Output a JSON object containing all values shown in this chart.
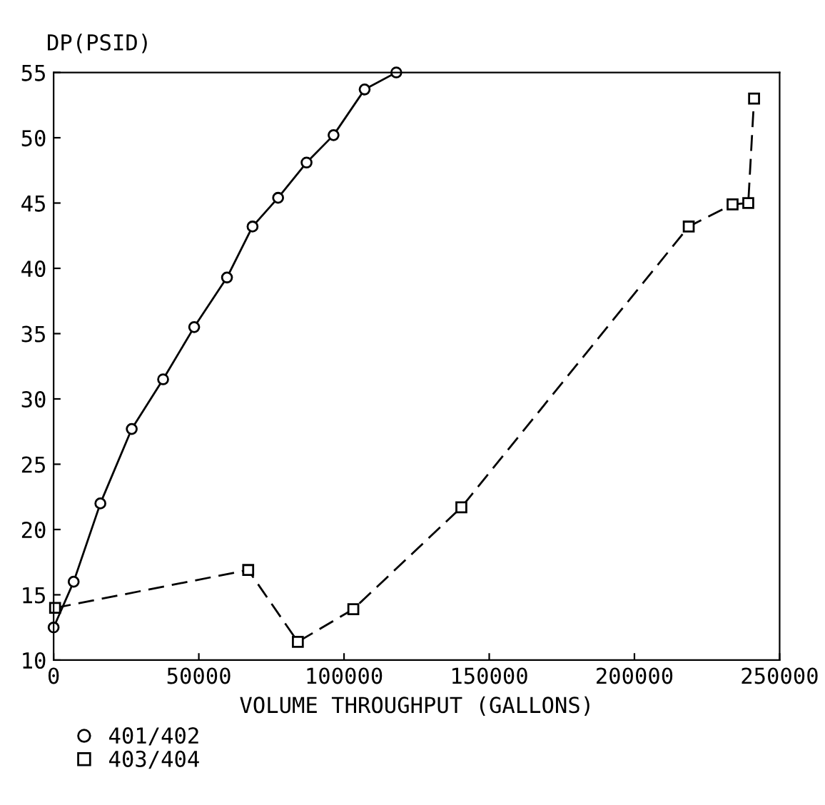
{
  "chart_data": {
    "type": "line",
    "xlabel": "VOLUME THROUGHPUT (GALLONS)",
    "ylabel": "DP(PSID)",
    "xlim": [
      0,
      250000
    ],
    "xticks": [
      0,
      50000,
      100000,
      150000,
      200000,
      250000
    ],
    "ylim": [
      10,
      55
    ],
    "yticks": [
      10,
      15,
      20,
      25,
      30,
      35,
      40,
      45,
      50,
      55
    ],
    "grid": false,
    "legend": "bottom left",
    "series": [
      {
        "name": "401/402",
        "color": "#000000",
        "marker": "circle",
        "line_style": "solid",
        "x": [
          0,
          6900,
          16100,
          26900,
          37700,
          48400,
          59700,
          68500,
          77300,
          87100,
          96400,
          107100,
          118000
        ],
        "values": [
          12.5,
          16,
          22,
          27.7,
          31.5,
          35.5,
          39.3,
          43.2,
          45.4,
          48.1,
          50.2,
          53.7,
          55
        ]
      },
      {
        "name": "403/404",
        "color": "#000000",
        "marker": "square",
        "line_style": "dashed",
        "x": [
          500,
          67000,
          84100,
          103200,
          140400,
          218700,
          233800,
          239200,
          241200
        ],
        "values": [
          14,
          16.9,
          11.4,
          13.9,
          21.7,
          43.2,
          44.9,
          45,
          53
        ]
      }
    ]
  }
}
